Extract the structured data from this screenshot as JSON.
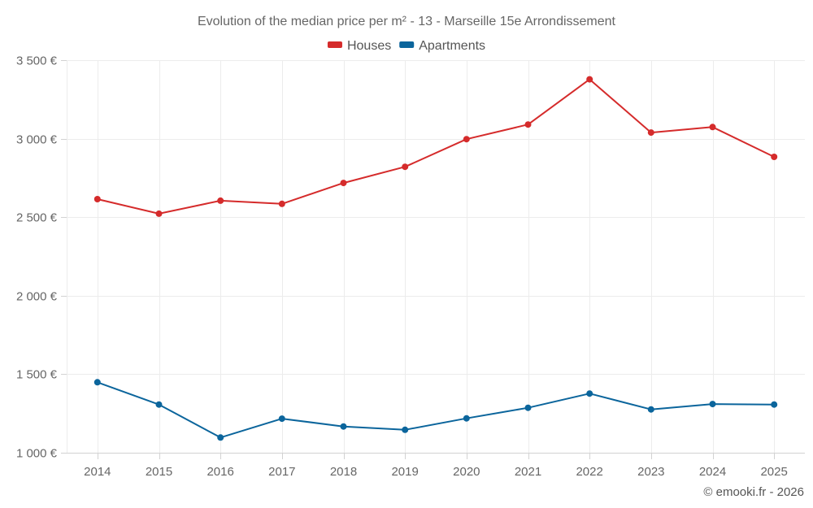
{
  "chart_data": {
    "type": "line",
    "title": "Evolution of the median price per m² - 13 - Marseille 15e Arrondissement",
    "xlabel": "",
    "ylabel": "",
    "categories": [
      "2014",
      "2015",
      "2016",
      "2017",
      "2018",
      "2019",
      "2020",
      "2021",
      "2022",
      "2023",
      "2024",
      "2025"
    ],
    "series": [
      {
        "name": "Houses",
        "color": "#d52b2b",
        "values": [
          2615,
          2522,
          2605,
          2585,
          2718,
          2821,
          2997,
          3090,
          3378,
          3039,
          3074,
          2884
        ]
      },
      {
        "name": "Apartments",
        "color": "#0b659c",
        "values": [
          1449,
          1307,
          1097,
          1217,
          1167,
          1146,
          1219,
          1286,
          1377,
          1276,
          1310,
          1307
        ]
      }
    ],
    "ylim": [
      1000,
      3500
    ],
    "yticks": [
      1000,
      1500,
      2000,
      2500,
      3000,
      3500
    ],
    "ytick_labels": [
      "1 000 €",
      "1 500 €",
      "2 000 €",
      "2 500 €",
      "3 000 €",
      "3 500 €"
    ],
    "grid": true,
    "legend_position": "top-center"
  },
  "credit": "© emooki.fr - 2026"
}
